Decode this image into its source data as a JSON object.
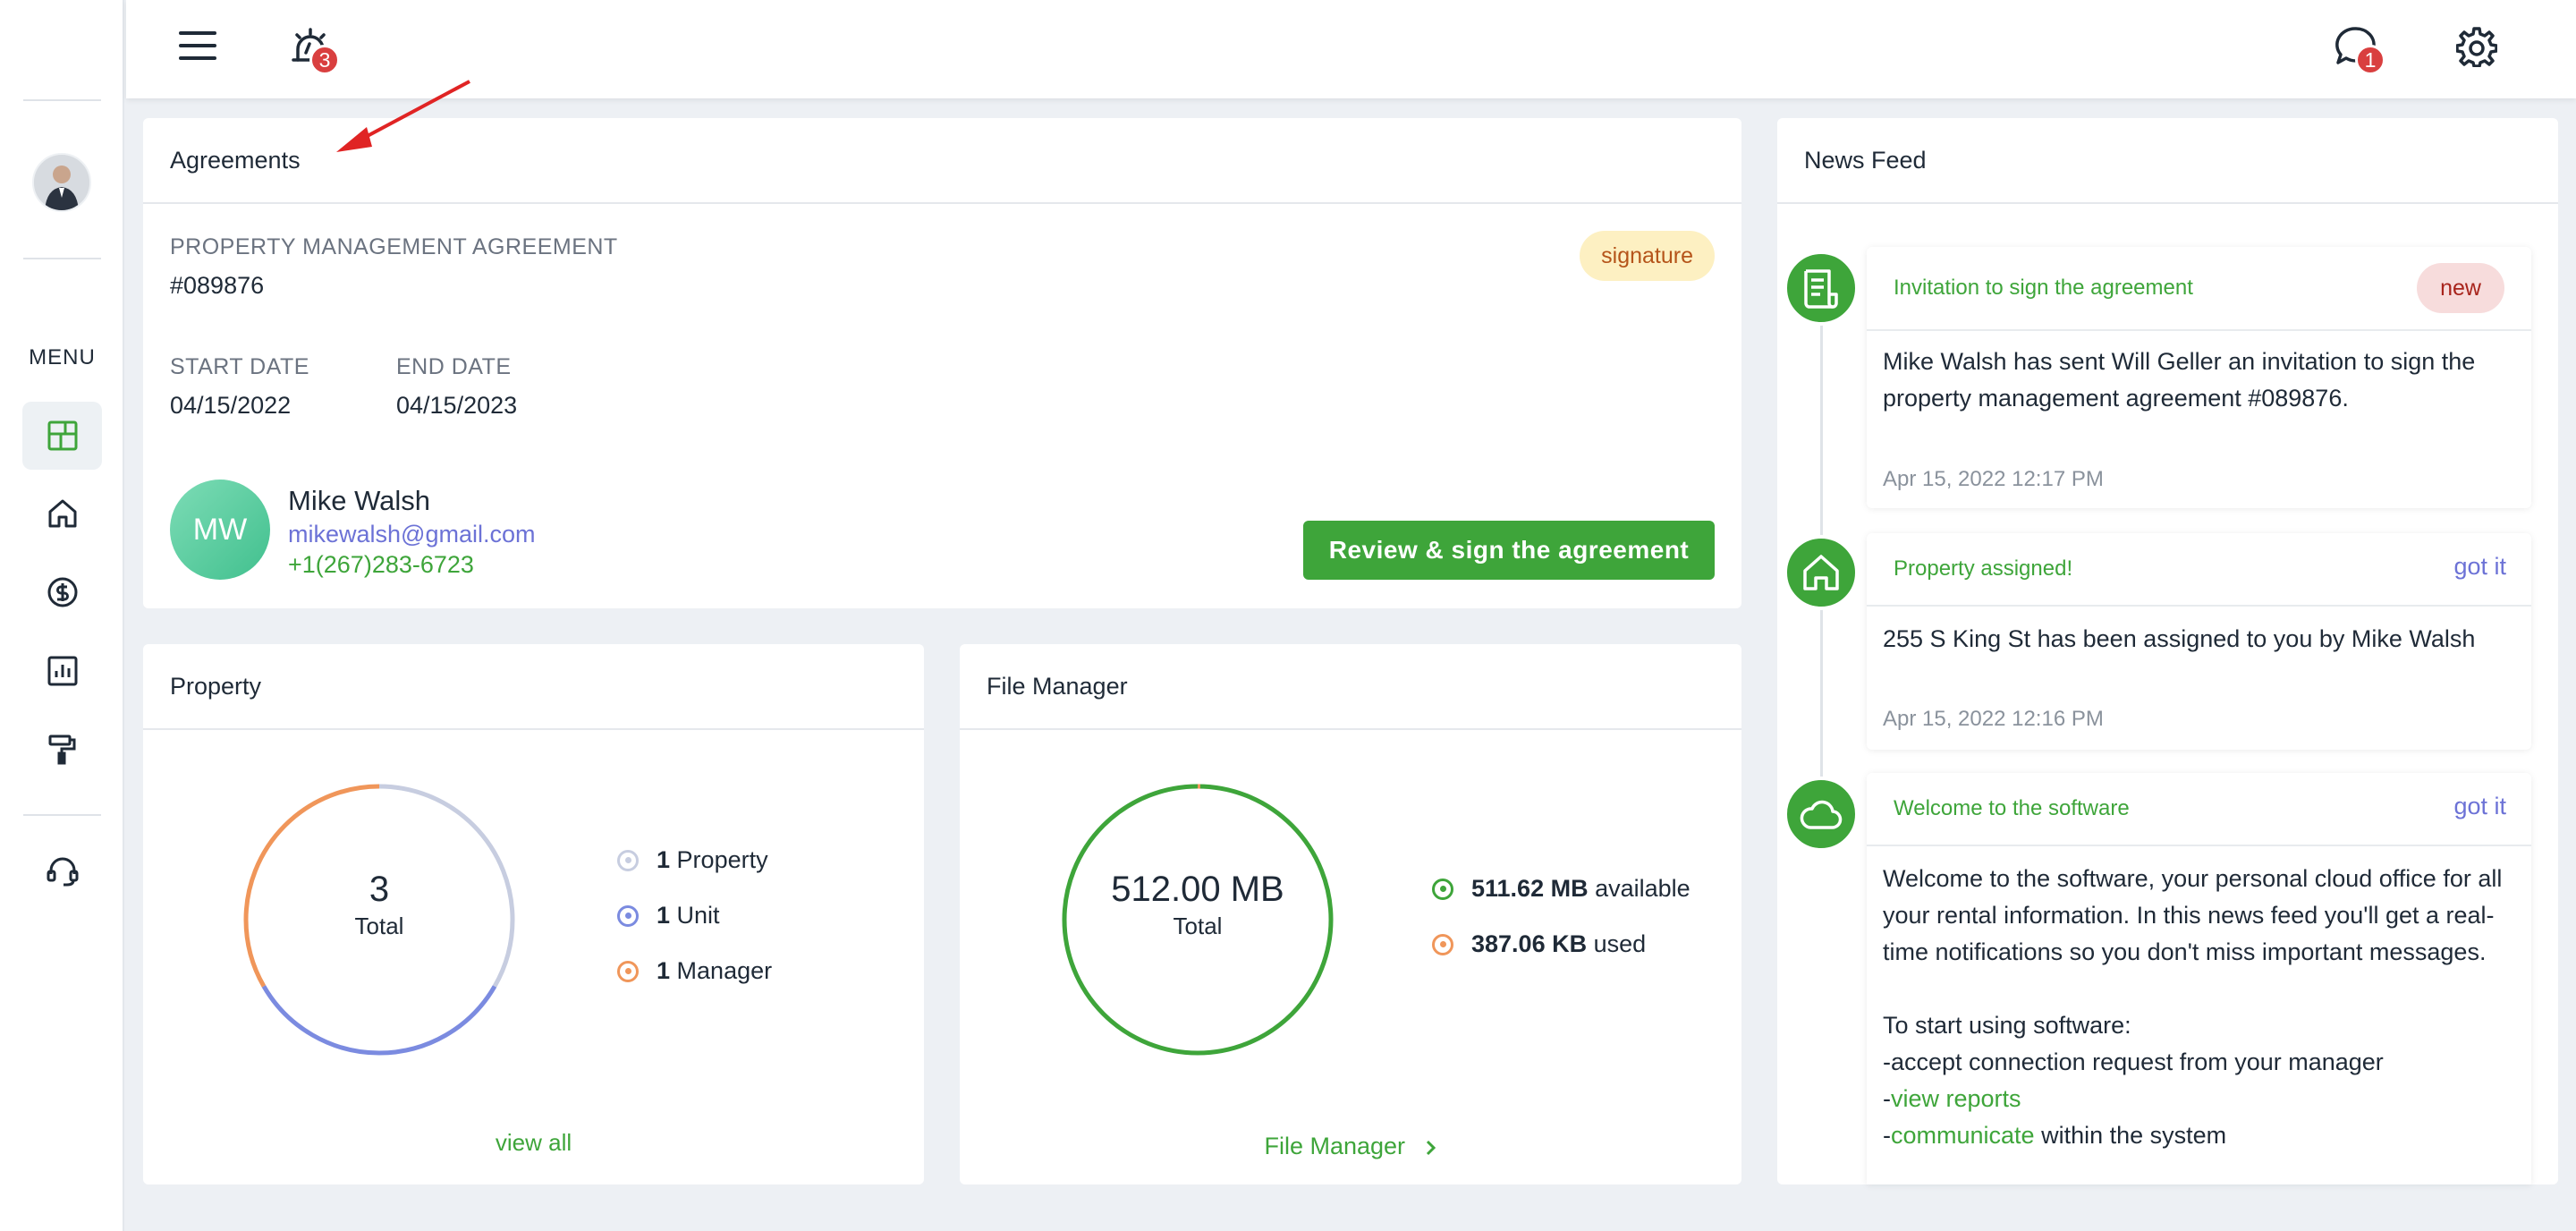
{
  "topbar": {
    "menu_icon": "hamburger-icon",
    "alarm_icon": "alarm-icon",
    "alarm_badge": "3",
    "chat_icon": "chat-icon",
    "chat_badge": "1",
    "settings_icon": "gear-icon"
  },
  "sidebar": {
    "menu_title": "MENU",
    "items": [
      {
        "icon": "dashboard-icon",
        "active": true
      },
      {
        "icon": "home-icon"
      },
      {
        "icon": "dollar-icon"
      },
      {
        "icon": "chart-icon"
      },
      {
        "icon": "paint-roller-icon"
      },
      {
        "icon": "headset-icon"
      }
    ]
  },
  "agreements": {
    "title": "Agreements",
    "type_label": "PROPERTY MANAGEMENT AGREEMENT",
    "number": "#089876",
    "status": "signature",
    "start_label": "START DATE",
    "start_value": "04/15/2022",
    "end_label": "END DATE",
    "end_value": "04/15/2023",
    "contact": {
      "initials": "MW",
      "name": "Mike Walsh",
      "email": "mikewalsh@gmail.com",
      "phone": "+1(267)283-6723"
    },
    "action_label": "Review & sign the agreement"
  },
  "property": {
    "title": "Property",
    "total_value": "3",
    "total_label": "Total",
    "legend": [
      {
        "count": "1",
        "label": "Property",
        "color": "#c7cde0"
      },
      {
        "count": "1",
        "label": "Unit",
        "color": "#7b8be0"
      },
      {
        "count": "1",
        "label": "Manager",
        "color": "#f0965a"
      }
    ],
    "view_all": "view all"
  },
  "file_manager": {
    "title": "File Manager",
    "total_value": "512.00 MB",
    "total_label": "Total",
    "legend": [
      {
        "value": "511.62 MB",
        "label": "available",
        "color": "#3ea53a"
      },
      {
        "value": "387.06 KB",
        "label": "used",
        "color": "#f0965a"
      }
    ],
    "link_label": "File Manager"
  },
  "news_feed": {
    "title": "News Feed",
    "items": [
      {
        "icon": "document-icon",
        "title": "Invitation to sign the agreement",
        "tag": "new",
        "body": "Mike Walsh has sent Will Geller an invitation to sign the property management agreement #089876.",
        "date": "Apr 15, 2022 12:17 PM"
      },
      {
        "icon": "home-icon",
        "title": "Property assigned!",
        "action": "got it",
        "body": "255 S King St has been assigned to you by Mike Walsh",
        "date": "Apr 15, 2022 12:16 PM"
      },
      {
        "icon": "cloud-icon",
        "title": "Welcome to the software",
        "action": "got it",
        "body_intro": "Welcome to the software, your personal cloud office for all your rental information. In this news feed you'll get a real-time notifications so you don't miss important messages.",
        "start_heading": "To start using software:",
        "step1": "-accept connection request from your manager",
        "step2_prefix": "-",
        "step2_link": "view reports",
        "step3_prefix": "-",
        "step3_link": "communicate",
        "step3_suffix": " within the system"
      }
    ]
  },
  "colors": {
    "brand_green": "#3ea53a",
    "badge_red": "#d93f3f",
    "signature_bg": "#fdf0c2",
    "signature_text": "#b5541a",
    "new_bg": "#f7dcdc",
    "link_purple": "#6c72d6"
  }
}
